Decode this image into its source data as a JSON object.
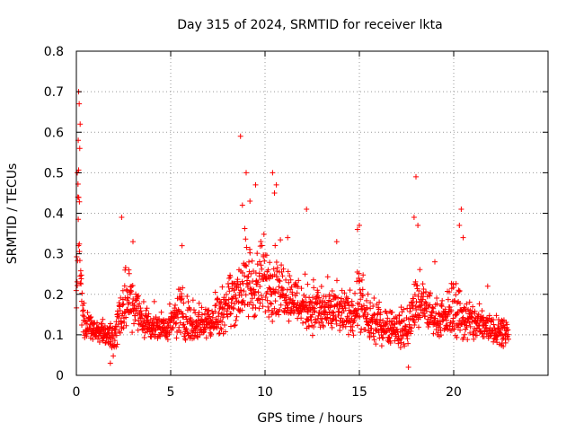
{
  "chart_data": {
    "type": "scatter",
    "title": "Day 315 of 2024, SRMTID for receiver lkta",
    "xlabel": "GPS time / hours",
    "ylabel": "SRMTID / TECUs",
    "xlim": [
      0,
      25
    ],
    "ylim": [
      0,
      0.8
    ],
    "x_ticks": [
      0,
      5,
      10,
      15,
      20
    ],
    "y_ticks": [
      0,
      0.1,
      0.2,
      0.3,
      0.4,
      0.5,
      0.6,
      0.7,
      0.8
    ],
    "x_tick_labels": [
      "0",
      "5",
      "10",
      "15",
      "20"
    ],
    "y_tick_labels": [
      "0",
      "0.1",
      "0.2",
      "0.3",
      "0.4",
      "0.5",
      "0.6",
      "0.7",
      "0.8"
    ],
    "grid": true,
    "marker": "+",
    "series_color": "#ff0000",
    "envelope": {
      "x": [
        0.0,
        0.1,
        0.2,
        0.3,
        0.5,
        0.8,
        1.0,
        1.5,
        2.0,
        2.5,
        3.0,
        3.5,
        4.0,
        4.5,
        5.0,
        5.5,
        6.0,
        6.5,
        7.0,
        7.5,
        8.0,
        8.5,
        9.0,
        9.5,
        10.0,
        10.5,
        11.0,
        11.5,
        12.0,
        12.5,
        13.0,
        13.5,
        14.0,
        14.5,
        15.0,
        15.5,
        16.0,
        16.5,
        17.0,
        17.5,
        18.0,
        18.5,
        19.0,
        19.5,
        20.0,
        20.5,
        21.0,
        21.5,
        22.0,
        22.5,
        22.9
      ],
      "low": [
        0.1,
        0.2,
        0.15,
        0.08,
        0.07,
        0.08,
        0.08,
        0.07,
        0.04,
        0.08,
        0.09,
        0.08,
        0.08,
        0.08,
        0.08,
        0.08,
        0.07,
        0.08,
        0.08,
        0.08,
        0.1,
        0.11,
        0.11,
        0.12,
        0.12,
        0.12,
        0.13,
        0.12,
        0.1,
        0.09,
        0.09,
        0.09,
        0.09,
        0.09,
        0.08,
        0.07,
        0.07,
        0.07,
        0.06,
        0.06,
        0.09,
        0.1,
        0.09,
        0.09,
        0.08,
        0.07,
        0.07,
        0.07,
        0.07,
        0.07,
        0.07
      ],
      "high": [
        0.3,
        0.65,
        0.45,
        0.25,
        0.18,
        0.16,
        0.15,
        0.14,
        0.16,
        0.32,
        0.28,
        0.2,
        0.18,
        0.16,
        0.17,
        0.26,
        0.2,
        0.19,
        0.2,
        0.23,
        0.27,
        0.31,
        0.38,
        0.33,
        0.38,
        0.36,
        0.31,
        0.27,
        0.26,
        0.26,
        0.24,
        0.24,
        0.23,
        0.22,
        0.3,
        0.2,
        0.19,
        0.19,
        0.18,
        0.18,
        0.28,
        0.25,
        0.2,
        0.19,
        0.28,
        0.22,
        0.2,
        0.19,
        0.18,
        0.16,
        0.15
      ]
    },
    "outliers": [
      {
        "x": 0.12,
        "y": 0.7
      },
      {
        "x": 0.15,
        "y": 0.67
      },
      {
        "x": 0.2,
        "y": 0.62
      },
      {
        "x": 0.1,
        "y": 0.58
      },
      {
        "x": 0.18,
        "y": 0.56
      },
      {
        "x": 0.05,
        "y": 0.5
      },
      {
        "x": 0.08,
        "y": 0.44
      },
      {
        "x": 2.4,
        "y": 0.39
      },
      {
        "x": 8.7,
        "y": 0.59
      },
      {
        "x": 9.0,
        "y": 0.5
      },
      {
        "x": 9.5,
        "y": 0.47
      },
      {
        "x": 10.4,
        "y": 0.5
      },
      {
        "x": 10.6,
        "y": 0.47
      },
      {
        "x": 10.5,
        "y": 0.45
      },
      {
        "x": 12.2,
        "y": 0.41
      },
      {
        "x": 11.2,
        "y": 0.34
      },
      {
        "x": 13.8,
        "y": 0.33
      },
      {
        "x": 15.0,
        "y": 0.37
      },
      {
        "x": 14.9,
        "y": 0.36
      },
      {
        "x": 18.0,
        "y": 0.49
      },
      {
        "x": 17.9,
        "y": 0.39
      },
      {
        "x": 18.1,
        "y": 0.37
      },
      {
        "x": 20.4,
        "y": 0.41
      },
      {
        "x": 20.3,
        "y": 0.37
      },
      {
        "x": 20.5,
        "y": 0.34
      },
      {
        "x": 3.0,
        "y": 0.33
      },
      {
        "x": 5.6,
        "y": 0.32
      },
      {
        "x": 8.8,
        "y": 0.42
      },
      {
        "x": 9.2,
        "y": 0.43
      },
      {
        "x": 19.0,
        "y": 0.28
      },
      {
        "x": 21.8,
        "y": 0.22
      },
      {
        "x": 1.8,
        "y": 0.03
      },
      {
        "x": 17.6,
        "y": 0.02
      }
    ],
    "point_count": 1700
  }
}
